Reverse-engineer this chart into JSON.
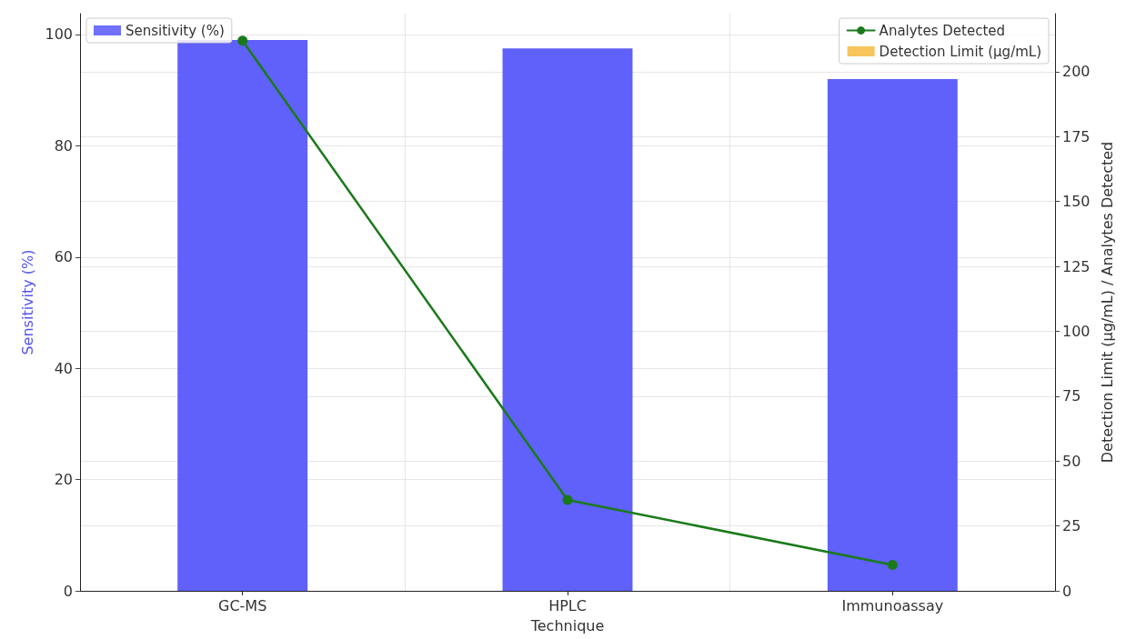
{
  "chart_data": {
    "type": "bar",
    "xlabel": "Technique",
    "ylabel": "Sensitivity (%)",
    "y2label": "Detection Limit (µg/mL) / Analytes Detected",
    "categories": [
      "GC-MS",
      "HPLC",
      "Immunoassay"
    ],
    "series": [
      {
        "name": "Sensitivity (%)",
        "color": "#6060fa",
        "values": [
          99,
          97.5,
          92
        ]
      },
      {
        "name": "Analytes Detected",
        "type": "line",
        "axis": "y2",
        "color": "#1a7a1a",
        "values": [
          212,
          35,
          10
        ]
      },
      {
        "name": "Detection Limit (µg/mL)",
        "axis": "y2",
        "color": "#f5c04a",
        "values": [
          null,
          null,
          null
        ]
      }
    ],
    "ylim": [
      0,
      103.75
    ],
    "yticks": [
      0,
      20,
      40,
      60,
      80,
      100
    ],
    "y2lim": [
      0,
      222.4
    ],
    "y2ticks": [
      0,
      25,
      50,
      75,
      100,
      125,
      150,
      175,
      200
    ],
    "grid": true,
    "legend": "top",
    "marker": "circle"
  }
}
